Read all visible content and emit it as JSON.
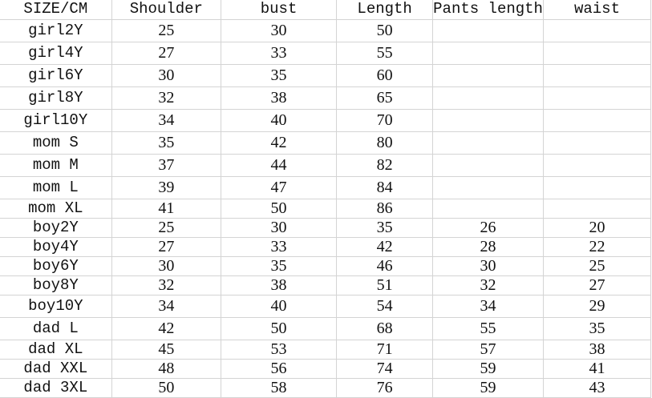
{
  "table": {
    "headers": [
      "SIZE/CM",
      "Shoulder",
      "bust",
      "Length",
      "Pants length",
      "waist"
    ],
    "rows": [
      [
        "girl2Y",
        "25",
        "30",
        "50",
        "",
        ""
      ],
      [
        "girl4Y",
        "27",
        "33",
        "55",
        "",
        ""
      ],
      [
        "girl6Y",
        "30",
        "35",
        "60",
        "",
        ""
      ],
      [
        "girl8Y",
        "32",
        "38",
        "65",
        "",
        ""
      ],
      [
        "girl10Y",
        "34",
        "40",
        "70",
        "",
        ""
      ],
      [
        "mom S",
        "35",
        "42",
        "80",
        "",
        ""
      ],
      [
        "mom M",
        "37",
        "44",
        "82",
        "",
        ""
      ],
      [
        "mom L",
        "39",
        "47",
        "84",
        "",
        ""
      ],
      [
        "mom XL",
        "41",
        "50",
        "86",
        "",
        ""
      ],
      [
        "boy2Y",
        "25",
        "30",
        "35",
        "26",
        "20"
      ],
      [
        "boy4Y",
        "27",
        "33",
        "42",
        "28",
        "22"
      ],
      [
        "boy6Y",
        "30",
        "35",
        "46",
        "30",
        "25"
      ],
      [
        "boy8Y",
        "32",
        "38",
        "51",
        "32",
        "27"
      ],
      [
        "boy10Y",
        "34",
        "40",
        "54",
        "34",
        "29"
      ],
      [
        "dad L",
        "42",
        "50",
        "68",
        "55",
        "35"
      ],
      [
        "dad XL",
        "45",
        "53",
        "71",
        "57",
        "38"
      ],
      [
        "dad XXL",
        "48",
        "56",
        "74",
        "59",
        "41"
      ],
      [
        "dad 3XL",
        "50",
        "58",
        "76",
        "59",
        "43"
      ]
    ]
  }
}
